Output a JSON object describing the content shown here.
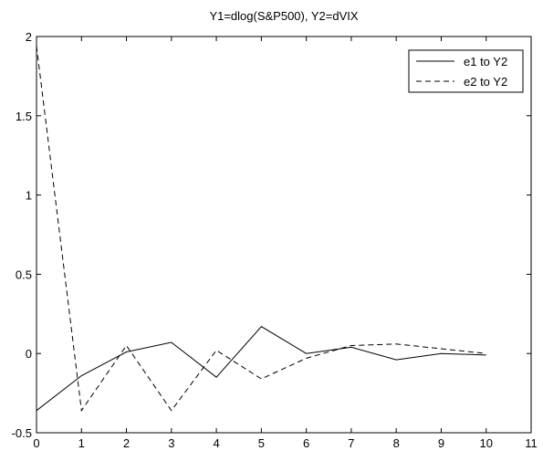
{
  "chart_data": {
    "type": "line",
    "title": "Y1=dlog(S&P500), Y2=dVIX",
    "xlabel": "",
    "ylabel": "",
    "xlim": [
      0,
      11
    ],
    "ylim": [
      -0.5,
      2
    ],
    "xticks": [
      0,
      1,
      2,
      3,
      4,
      5,
      6,
      7,
      8,
      9,
      10,
      11
    ],
    "yticks": [
      -0.5,
      0,
      0.5,
      1,
      1.5,
      2
    ],
    "ytick_labels": [
      "-0.5",
      "0",
      "0.5",
      "1",
      "1.5",
      "2"
    ],
    "grid": false,
    "legend_position": "top-right",
    "x": [
      0,
      1,
      2,
      3,
      4,
      5,
      6,
      7,
      8,
      9,
      10
    ],
    "series": [
      {
        "name": "e1 to Y2",
        "line_style": "solid",
        "color": "#000000",
        "values": [
          -0.36,
          -0.14,
          0.01,
          0.07,
          -0.15,
          0.17,
          0.0,
          0.04,
          -0.04,
          0.0,
          -0.01
        ]
      },
      {
        "name": "e2 to Y2",
        "line_style": "dashed",
        "color": "#000000",
        "values": [
          1.94,
          -0.36,
          0.05,
          -0.36,
          0.02,
          -0.16,
          -0.03,
          0.05,
          0.06,
          0.03,
          0.0
        ]
      }
    ]
  }
}
